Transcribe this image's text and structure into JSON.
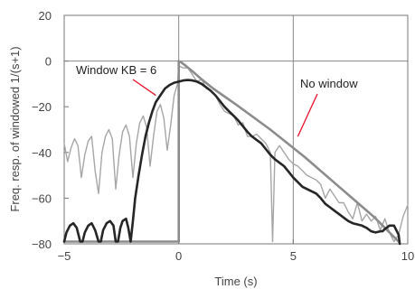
{
  "chart_data": {
    "type": "line",
    "title": "",
    "xlabel": "Time (s)",
    "ylabel": "Freq. resp. of windowed 1/(s+1)",
    "xlim": [
      -5,
      10
    ],
    "ylim": [
      -80,
      20
    ],
    "xticks": [
      -5,
      0,
      5,
      10
    ],
    "yticks": [
      -80,
      -60,
      -40,
      -20,
      0,
      20
    ],
    "xtick_labels": [
      "−5",
      "0",
      "5",
      "10"
    ],
    "ytick_labels": [
      "−80",
      "−60",
      "−40",
      "−20",
      "0",
      "20"
    ],
    "grid": {
      "vertical_at": [
        0,
        5
      ],
      "horizontal_at": [
        0
      ]
    },
    "annotations": [
      {
        "text": "Window KB = 6",
        "points_to": {
          "x": -1.0,
          "y": -15
        }
      },
      {
        "text": "No window",
        "points_to": {
          "x": 5.2,
          "y": -33
        }
      }
    ],
    "colors": {
      "window_kb6": "#262626",
      "no_window": "#a6a6a6",
      "ideal": "#8c8c8c",
      "annotation_line": "#e8102a",
      "grid": "#888888"
    },
    "series": [
      {
        "key": "no_window",
        "x": [
          -5.0,
          -4.85,
          -4.7,
          -4.55,
          -4.4,
          -4.25,
          -4.1,
          -3.95,
          -3.8,
          -3.65,
          -3.5,
          -3.35,
          -3.2,
          -3.05,
          -2.9,
          -2.75,
          -2.6,
          -2.45,
          -2.3,
          -2.15,
          -2.0,
          -1.85,
          -1.7,
          -1.55,
          -1.4,
          -1.25,
          -1.1,
          -0.95,
          -0.8,
          -0.65,
          -0.5,
          -0.35,
          -0.2,
          -0.05,
          0.0,
          0.2,
          0.4,
          0.6,
          0.8,
          1.0,
          1.2,
          1.4,
          1.6,
          1.8,
          2.0,
          2.2,
          2.4,
          2.6,
          2.8,
          3.0,
          3.2,
          3.4,
          3.6,
          3.8,
          4.0,
          4.1,
          4.2,
          4.4,
          4.6,
          4.8,
          5.0,
          5.2,
          5.4,
          5.6,
          5.8,
          6.0,
          6.2,
          6.4,
          6.6,
          6.8,
          7.0,
          7.2,
          7.4,
          7.6,
          7.8,
          8.0,
          8.2,
          8.4,
          8.6,
          8.8,
          9.0,
          9.2,
          9.4,
          9.6,
          9.8,
          10.0
        ],
        "y": [
          -36,
          -44,
          -38,
          -34,
          -37,
          -51,
          -41,
          -35,
          -33,
          -48,
          -58,
          -40,
          -33,
          -30,
          -34,
          -56,
          -41,
          -31,
          -28,
          -33,
          -51,
          -36,
          -27,
          -24,
          -29,
          -46,
          -33,
          -22,
          -19,
          -25,
          -39,
          -28,
          -15,
          -10,
          -2,
          -3,
          -3,
          -6,
          -9,
          -8,
          -12,
          -13,
          -15,
          -19,
          -22,
          -23,
          -24,
          -28,
          -27,
          -33,
          -33,
          -32,
          -34,
          -36,
          -40,
          -79,
          -40,
          -37,
          -40,
          -43,
          -45,
          -46,
          -48,
          -50,
          -51,
          -52,
          -54,
          -60,
          -56,
          -59,
          -62,
          -62,
          -66,
          -69,
          -62,
          -70,
          -67,
          -70,
          -68,
          -74,
          -69,
          -75,
          -79,
          -76,
          -68,
          -63
        ]
      },
      {
        "key": "ideal",
        "x": [
          -5.0,
          0.0,
          0.0,
          0.1,
          0.3,
          0.6,
          1.0,
          1.5,
          2.5,
          4.0,
          5.5,
          7.0,
          8.5,
          9.6
        ],
        "y": [
          -79,
          -79,
          0,
          -0.5,
          -2.0,
          -4.5,
          -8.0,
          -12.0,
          -19.0,
          -30.0,
          -42.0,
          -55.0,
          -68.0,
          -79.0
        ]
      },
      {
        "key": "window_kb6",
        "x": [
          -5.0,
          -4.9,
          -4.75,
          -4.6,
          -4.45,
          -4.3,
          -4.2,
          -4.1,
          -3.95,
          -3.8,
          -3.65,
          -3.5,
          -3.4,
          -3.3,
          -3.15,
          -3.0,
          -2.85,
          -2.75,
          -2.65,
          -2.55,
          -2.45,
          -2.3,
          -2.2,
          -2.1,
          -2.0,
          -1.9,
          -1.75,
          -1.6,
          -1.45,
          -1.3,
          -1.15,
          -1.0,
          -0.8,
          -0.6,
          -0.4,
          -0.2,
          0.0,
          0.2,
          0.4,
          0.6,
          0.8,
          1.0,
          1.2,
          1.4,
          1.6,
          1.8,
          2.0,
          2.2,
          2.4,
          2.6,
          2.8,
          3.0,
          3.2,
          3.4,
          3.6,
          3.8,
          4.0,
          4.2,
          4.4,
          4.6,
          4.8,
          5.0,
          5.2,
          5.4,
          5.6,
          5.8,
          6.0,
          6.2,
          6.4,
          6.6,
          6.8,
          7.0,
          7.2,
          7.4,
          7.6,
          7.8,
          8.0,
          8.2,
          8.4,
          8.6,
          8.8,
          8.9,
          9.0,
          9.2,
          9.4,
          9.6,
          9.65
        ],
        "y": [
          -79,
          -75,
          -72,
          -71,
          -73,
          -79,
          -79,
          -75,
          -72,
          -71,
          -74,
          -79,
          -79,
          -74,
          -71,
          -70,
          -72,
          -79,
          -79,
          -73,
          -70,
          -69,
          -73,
          -79,
          -70,
          -60,
          -50,
          -41,
          -33,
          -27,
          -22,
          -18,
          -15,
          -12,
          -10.5,
          -9.5,
          -9,
          -8.5,
          -8.3,
          -8.5,
          -9,
          -10,
          -11.5,
          -13,
          -15,
          -17.5,
          -20,
          -22,
          -24,
          -26,
          -28.5,
          -31,
          -33,
          -34.5,
          -36,
          -38.5,
          -41,
          -43,
          -44.5,
          -46,
          -48.5,
          -51,
          -53,
          -55,
          -56,
          -57,
          -58,
          -60,
          -62.5,
          -64,
          -65.5,
          -67,
          -68.5,
          -70,
          -71,
          -71.5,
          -72,
          -73,
          -74.5,
          -75,
          -74.5,
          -74.5,
          -73.5,
          -72,
          -72,
          -76,
          -80
        ]
      }
    ]
  }
}
